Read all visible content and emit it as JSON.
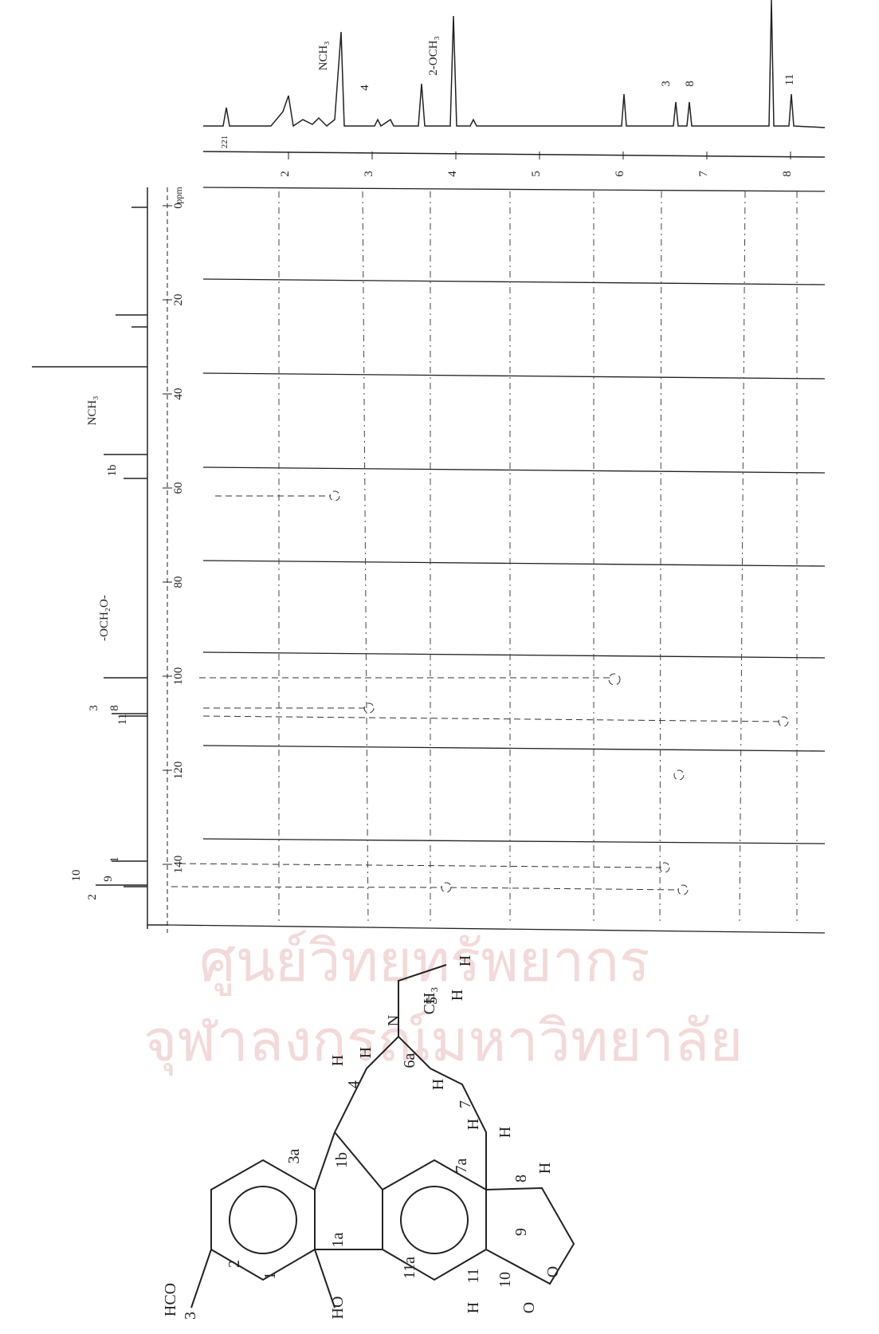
{
  "spectrum": {
    "h_axis": {
      "ticks": [
        2,
        3,
        4,
        5,
        6,
        7,
        8
      ],
      "unit_fragment": "221"
    },
    "c_axis": {
      "ticks": [
        0,
        20,
        40,
        60,
        80,
        100,
        120,
        140
      ],
      "unit": "ppm"
    },
    "h_peaks": [
      "NCH₃",
      "4",
      "2-OCH₃",
      "3",
      "8",
      "11"
    ],
    "c_peaks": [
      "NCH₃",
      "1b",
      "-OCH₂O-",
      "3",
      "8",
      "11",
      "1",
      "10",
      "9",
      "2"
    ]
  },
  "watermark": [
    "ศูนย์วิทยทรัพยากร",
    "จุฬาลงกรณ์มหาวิทยาลัย"
  ],
  "structure": {
    "atoms": [
      "H",
      "H",
      "5",
      "N",
      "CH₃",
      "H",
      "H",
      "4",
      "6a",
      "H",
      "7",
      "H",
      "H",
      "3a",
      "1b",
      "7a",
      "8",
      "H",
      "1a",
      "9",
      "O",
      "2",
      "11a",
      "1",
      "11",
      "10",
      "O",
      "HCO",
      "3",
      "HO",
      "H"
    ]
  }
}
